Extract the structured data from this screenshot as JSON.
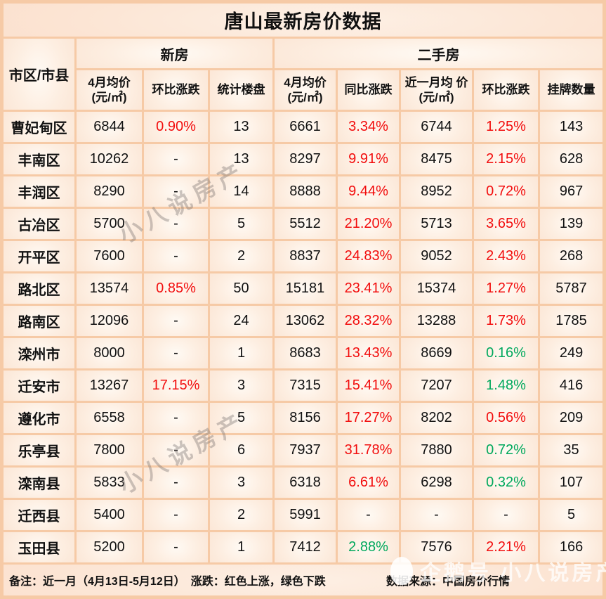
{
  "title": "唐山最新房价数据",
  "header": {
    "region": "市区/市县",
    "new_group": "新房",
    "used_group": "二手房",
    "cols": [
      "4月均价 (元/㎡)",
      "环比涨跌",
      "统计楼盘",
      "4月均价 (元/㎡)",
      "同比涨跌",
      "近一月均 价(元/㎡)",
      "环比涨跌",
      "挂牌数量"
    ]
  },
  "rows": [
    {
      "region": "曹妃甸区",
      "cells": [
        {
          "v": "6844"
        },
        {
          "v": "0.90%",
          "c": "red"
        },
        {
          "v": "13"
        },
        {
          "v": "6661"
        },
        {
          "v": "3.34%",
          "c": "red"
        },
        {
          "v": "6744"
        },
        {
          "v": "1.25%",
          "c": "red"
        },
        {
          "v": "143"
        }
      ]
    },
    {
      "region": "丰南区",
      "cells": [
        {
          "v": "10262"
        },
        {
          "v": "-"
        },
        {
          "v": "13"
        },
        {
          "v": "8297"
        },
        {
          "v": "9.91%",
          "c": "red"
        },
        {
          "v": "8475"
        },
        {
          "v": "2.15%",
          "c": "red"
        },
        {
          "v": "628"
        }
      ]
    },
    {
      "region": "丰润区",
      "cells": [
        {
          "v": "8290"
        },
        {
          "v": "-"
        },
        {
          "v": "14"
        },
        {
          "v": "8888"
        },
        {
          "v": "9.44%",
          "c": "red"
        },
        {
          "v": "8952"
        },
        {
          "v": "0.72%",
          "c": "red"
        },
        {
          "v": "967"
        }
      ]
    },
    {
      "region": "古冶区",
      "cells": [
        {
          "v": "5700"
        },
        {
          "v": "-"
        },
        {
          "v": "5"
        },
        {
          "v": "5512"
        },
        {
          "v": "21.20%",
          "c": "red"
        },
        {
          "v": "5713"
        },
        {
          "v": "3.65%",
          "c": "red"
        },
        {
          "v": "139"
        }
      ]
    },
    {
      "region": "开平区",
      "cells": [
        {
          "v": "7600"
        },
        {
          "v": "-"
        },
        {
          "v": "2"
        },
        {
          "v": "8837"
        },
        {
          "v": "24.83%",
          "c": "red"
        },
        {
          "v": "9052"
        },
        {
          "v": "2.43%",
          "c": "red"
        },
        {
          "v": "268"
        }
      ]
    },
    {
      "region": "路北区",
      "cells": [
        {
          "v": "13574"
        },
        {
          "v": "0.85%",
          "c": "red"
        },
        {
          "v": "50"
        },
        {
          "v": "15181"
        },
        {
          "v": "23.41%",
          "c": "red"
        },
        {
          "v": "15374"
        },
        {
          "v": "1.27%",
          "c": "red"
        },
        {
          "v": "5787"
        }
      ]
    },
    {
      "region": "路南区",
      "cells": [
        {
          "v": "12096"
        },
        {
          "v": "-"
        },
        {
          "v": "24"
        },
        {
          "v": "13062"
        },
        {
          "v": "28.32%",
          "c": "red"
        },
        {
          "v": "13288"
        },
        {
          "v": "1.73%",
          "c": "red"
        },
        {
          "v": "1785"
        }
      ]
    },
    {
      "region": "滦州市",
      "cells": [
        {
          "v": "8000"
        },
        {
          "v": "-"
        },
        {
          "v": "1"
        },
        {
          "v": "8683"
        },
        {
          "v": "13.43%",
          "c": "red"
        },
        {
          "v": "8669"
        },
        {
          "v": "0.16%",
          "c": "green"
        },
        {
          "v": "249"
        }
      ]
    },
    {
      "region": "迁安市",
      "cells": [
        {
          "v": "13267"
        },
        {
          "v": "17.15%",
          "c": "red"
        },
        {
          "v": "3"
        },
        {
          "v": "7315"
        },
        {
          "v": "15.41%",
          "c": "red"
        },
        {
          "v": "7207"
        },
        {
          "v": "1.48%",
          "c": "green"
        },
        {
          "v": "416"
        }
      ]
    },
    {
      "region": "遵化市",
      "cells": [
        {
          "v": "6558"
        },
        {
          "v": "-"
        },
        {
          "v": "5"
        },
        {
          "v": "8156"
        },
        {
          "v": "17.27%",
          "c": "red"
        },
        {
          "v": "8202"
        },
        {
          "v": "0.56%",
          "c": "red"
        },
        {
          "v": "209"
        }
      ]
    },
    {
      "region": "乐亭县",
      "cells": [
        {
          "v": "7800"
        },
        {
          "v": "-"
        },
        {
          "v": "6"
        },
        {
          "v": "7937"
        },
        {
          "v": "31.78%",
          "c": "red"
        },
        {
          "v": "7880"
        },
        {
          "v": "0.72%",
          "c": "green"
        },
        {
          "v": "35"
        }
      ]
    },
    {
      "region": "滦南县",
      "cells": [
        {
          "v": "5833"
        },
        {
          "v": "-"
        },
        {
          "v": "3"
        },
        {
          "v": "6318"
        },
        {
          "v": "6.61%",
          "c": "red"
        },
        {
          "v": "6298"
        },
        {
          "v": "0.32%",
          "c": "green"
        },
        {
          "v": "107"
        }
      ]
    },
    {
      "region": "迁西县",
      "cells": [
        {
          "v": "5400"
        },
        {
          "v": "-"
        },
        {
          "v": "2"
        },
        {
          "v": "5991"
        },
        {
          "v": "-"
        },
        {
          "v": "-"
        },
        {
          "v": "-"
        },
        {
          "v": "5"
        }
      ]
    },
    {
      "region": "玉田县",
      "cells": [
        {
          "v": "5200"
        },
        {
          "v": "-"
        },
        {
          "v": "1"
        },
        {
          "v": "7412"
        },
        {
          "v": "2.88%",
          "c": "green"
        },
        {
          "v": "7576"
        },
        {
          "v": "2.21%",
          "c": "red"
        },
        {
          "v": "166"
        }
      ]
    }
  ],
  "footer": {
    "note": "备注：近一月（4月13日-5月12日）　涨跌：红色上涨，绿色下跌",
    "source": "数据来源：中国房价行情"
  },
  "watermarks": {
    "diagonal": "小八说房产",
    "bottom": "企鹅号 小八说房产"
  },
  "colors": {
    "up_red": "#f20d0d",
    "down_green": "#00a85c"
  },
  "chart_data": {
    "type": "table",
    "title": "唐山最新房价数据",
    "column_groups": [
      "市区/市县",
      "新房",
      "二手房"
    ],
    "columns": [
      "市区/市县",
      "新房4月均价(元/㎡)",
      "新房环比涨跌",
      "统计楼盘",
      "二手房4月均价(元/㎡)",
      "同比涨跌",
      "近一月均价(元/㎡)",
      "环比涨跌",
      "挂牌数量"
    ],
    "rows": [
      [
        "曹妃甸区",
        "6844",
        "0.90%",
        "13",
        "6661",
        "3.34%",
        "6744",
        "1.25%",
        "143"
      ],
      [
        "丰南区",
        "10262",
        "-",
        "13",
        "8297",
        "9.91%",
        "8475",
        "2.15%",
        "628"
      ],
      [
        "丰润区",
        "8290",
        "-",
        "14",
        "8888",
        "9.44%",
        "8952",
        "0.72%",
        "967"
      ],
      [
        "古冶区",
        "5700",
        "-",
        "5",
        "5512",
        "21.20%",
        "5713",
        "3.65%",
        "139"
      ],
      [
        "开平区",
        "7600",
        "-",
        "2",
        "8837",
        "24.83%",
        "9052",
        "2.43%",
        "268"
      ],
      [
        "路北区",
        "13574",
        "0.85%",
        "50",
        "15181",
        "23.41%",
        "15374",
        "1.27%",
        "5787"
      ],
      [
        "路南区",
        "12096",
        "-",
        "24",
        "13062",
        "28.32%",
        "13288",
        "1.73%",
        "1785"
      ],
      [
        "滦州市",
        "8000",
        "-",
        "1",
        "8683",
        "13.43%",
        "8669",
        "0.16%",
        "249"
      ],
      [
        "迁安市",
        "13267",
        "17.15%",
        "3",
        "7315",
        "15.41%",
        "7207",
        "1.48%",
        "416"
      ],
      [
        "遵化市",
        "6558",
        "-",
        "5",
        "8156",
        "17.27%",
        "8202",
        "0.56%",
        "209"
      ],
      [
        "乐亭县",
        "7800",
        "-",
        "6",
        "7937",
        "31.78%",
        "7880",
        "0.72%",
        "35"
      ],
      [
        "滦南县",
        "5833",
        "-",
        "3",
        "6318",
        "6.61%",
        "6298",
        "0.32%",
        "107"
      ],
      [
        "迁西县",
        "5400",
        "-",
        "2",
        "5991",
        "-",
        "-",
        "-",
        "5"
      ],
      [
        "玉田县",
        "5200",
        "-",
        "1",
        "7412",
        "2.88%",
        "7576",
        "2.21%",
        "166"
      ]
    ]
  }
}
